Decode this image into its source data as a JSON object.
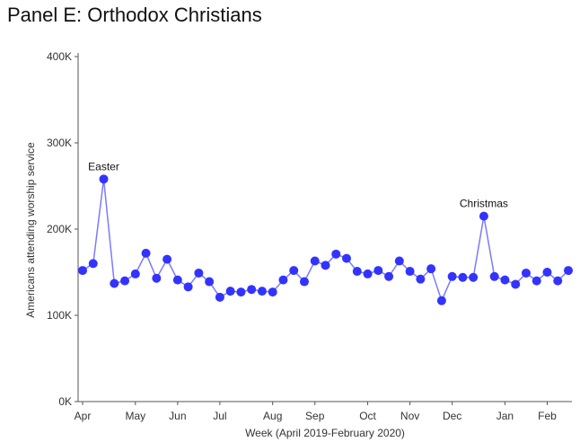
{
  "title": "Panel E: Orthodox Christians",
  "chart_data": {
    "type": "line",
    "title": "Panel E: Orthodox Christians",
    "xlabel": "Week (April 2019-February 2020)",
    "ylabel": "Americans attending worship service",
    "ylim": [
      0,
      400000
    ],
    "yticks": [
      0,
      100000,
      200000,
      300000,
      400000
    ],
    "ytick_labels": [
      "0K",
      "100K",
      "200K",
      "300K",
      "400K"
    ],
    "grid": false,
    "month_labels": [
      {
        "label": "Apr",
        "week": 0
      },
      {
        "label": "May",
        "week": 5
      },
      {
        "label": "Jun",
        "week": 9
      },
      {
        "label": "Jul",
        "week": 13
      },
      {
        "label": "Aug",
        "week": 18
      },
      {
        "label": "Sep",
        "week": 22
      },
      {
        "label": "Oct",
        "week": 27
      },
      {
        "label": "Nov",
        "week": 31
      },
      {
        "label": "Dec",
        "week": 35
      },
      {
        "label": "Jan",
        "week": 40
      },
      {
        "label": "Feb",
        "week": 44
      }
    ],
    "series": [
      {
        "color": "#3333ff",
        "values": [
          152000,
          160000,
          258000,
          137000,
          140000,
          148000,
          172000,
          143000,
          165000,
          141000,
          133000,
          149000,
          139000,
          121000,
          128000,
          127000,
          130000,
          128000,
          127000,
          141000,
          152000,
          139000,
          163000,
          158000,
          171000,
          166000,
          151000,
          148000,
          152000,
          145000,
          163000,
          151000,
          142000,
          154000,
          117000,
          145000,
          144000,
          144000,
          215000,
          145000,
          141000,
          136000,
          149000,
          140000,
          150000,
          140000,
          152000
        ]
      }
    ],
    "annotations": [
      {
        "text": "Easter",
        "week": 2,
        "value": 258000
      },
      {
        "text": "Christmas",
        "week": 38,
        "value": 215000
      }
    ]
  }
}
